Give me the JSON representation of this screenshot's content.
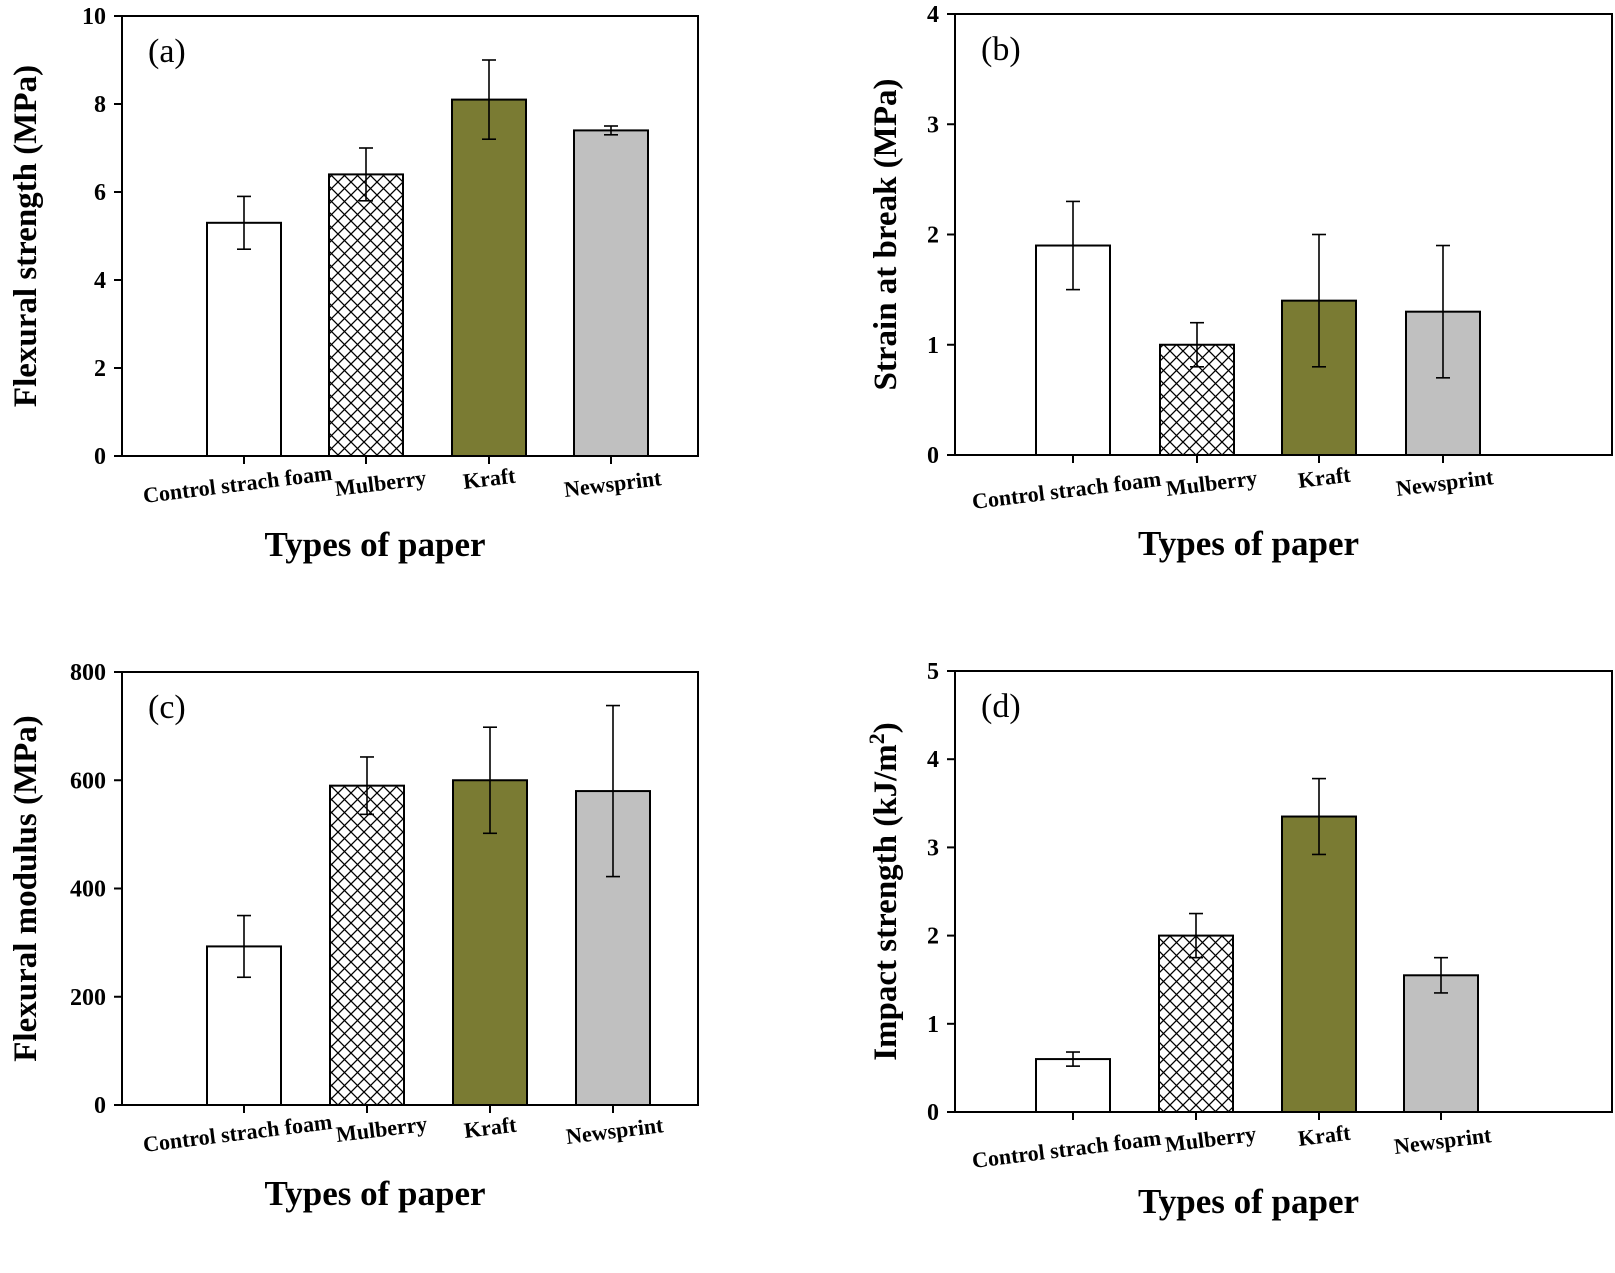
{
  "figure": {
    "categories": [
      "Control strach foam",
      "Mulberry",
      "Kraft",
      "Newsprint"
    ],
    "series_colors": {
      "Control strach foam": "#ffffff",
      "Mulberry": "crosshatch",
      "Kraft": "#7a7b33",
      "Newsprint": "#c0c0c0"
    }
  },
  "chart_data": [
    {
      "type": "bar",
      "panel": "(a)",
      "title": "",
      "xlabel": "Types of paper",
      "ylabel": "Flexural strength (MPa)",
      "categories": [
        "Control strach foam",
        "Mulberry",
        "Kraft",
        "Newsprint"
      ],
      "values": [
        5.3,
        6.4,
        8.1,
        7.4
      ],
      "errors": [
        0.6,
        0.6,
        0.9,
        0.1
      ],
      "ylim": [
        0,
        10
      ],
      "yticks": [
        0,
        2,
        4,
        6,
        8,
        10
      ]
    },
    {
      "type": "bar",
      "panel": "(b)",
      "title": "",
      "xlabel": "Types of paper",
      "ylabel": "Strain at break (MPa)",
      "categories": [
        "Control strach foam",
        "Mulberry",
        "Kraft",
        "Newsprint"
      ],
      "values": [
        1.9,
        1.0,
        1.4,
        1.3
      ],
      "errors": [
        0.4,
        0.2,
        0.6,
        0.6
      ],
      "ylim": [
        0,
        4
      ],
      "yticks": [
        0,
        1,
        2,
        3,
        4
      ]
    },
    {
      "type": "bar",
      "panel": "(c)",
      "title": "",
      "xlabel": "Types of paper",
      "ylabel": "Flexural modulus (MPa)",
      "categories": [
        "Control strach foam",
        "Mulberry",
        "Kraft",
        "Newsprint"
      ],
      "values": [
        293,
        590,
        600,
        580
      ],
      "errors": [
        57,
        53,
        98,
        158
      ],
      "ylim": [
        0,
        800
      ],
      "yticks": [
        0,
        200,
        400,
        600,
        800
      ]
    },
    {
      "type": "bar",
      "panel": "(d)",
      "title": "",
      "xlabel": "Types of paper",
      "ylabel": "Impact strength (kJ/m",
      "ylabel_sup": "2",
      "ylabel_suffix": ")",
      "categories": [
        "Control strach foam",
        "Mulberry",
        "Kraft",
        "Newsprint"
      ],
      "values": [
        0.6,
        2.0,
        3.35,
        1.55
      ],
      "errors": [
        0.08,
        0.25,
        0.43,
        0.2
      ],
      "ylim": [
        0,
        5
      ],
      "yticks": [
        0,
        1,
        2,
        3,
        4,
        5
      ]
    }
  ]
}
